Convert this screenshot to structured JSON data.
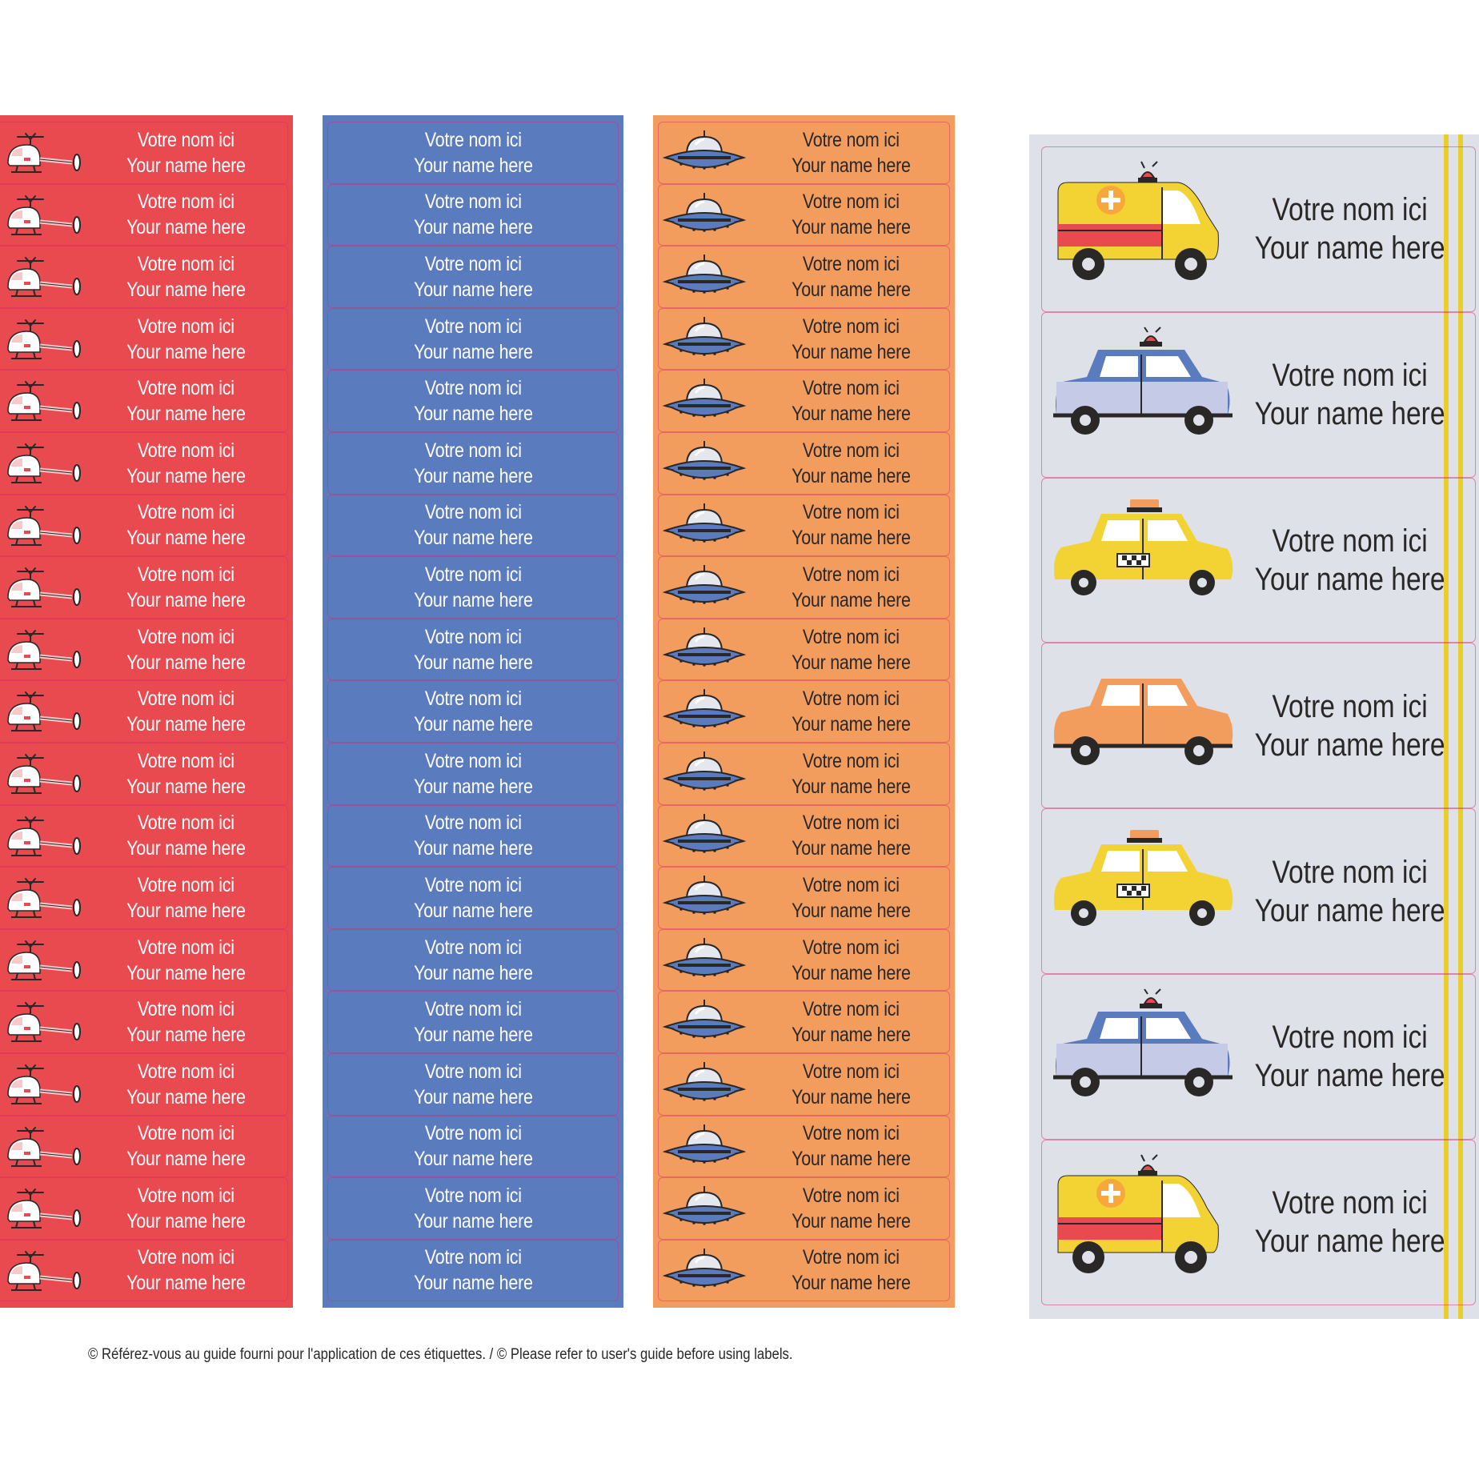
{
  "labels": {
    "line_fr": "Votre nom ici",
    "line_en": "Your name here"
  },
  "strips": [
    {
      "id": "red",
      "color": "#e84a50",
      "icon": "helicopter-icon",
      "count": 19
    },
    {
      "id": "blue",
      "color": "#5b7bbf",
      "icon": "none",
      "count": 19
    },
    {
      "id": "orange",
      "color": "#f29c5e",
      "icon": "ufo-icon",
      "count": 19
    }
  ],
  "car_sheet": {
    "background": "#dfe1e8",
    "items": [
      {
        "icon": "ambulance-icon"
      },
      {
        "icon": "police-car-icon"
      },
      {
        "icon": "taxi-icon"
      },
      {
        "icon": "orange-car-icon"
      },
      {
        "icon": "taxi-icon"
      },
      {
        "icon": "police-car-icon"
      },
      {
        "icon": "ambulance-icon"
      }
    ]
  },
  "footer": {
    "note": "© Référez-vous au guide fourni pour l'application de ces étiquettes. / © Please refer to user's guide before using labels."
  }
}
